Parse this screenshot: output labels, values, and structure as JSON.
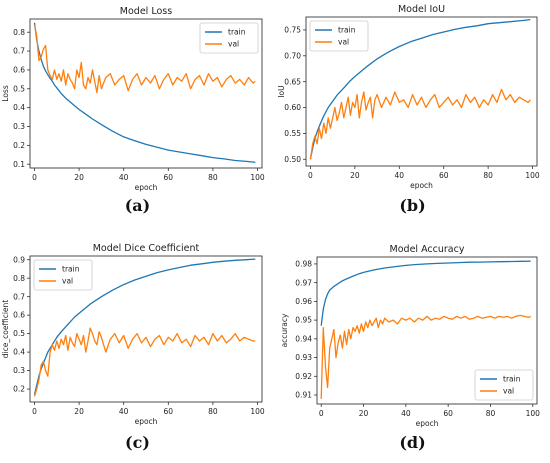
{
  "colors": {
    "train": "#1f77b4",
    "val": "#ff7f0e"
  },
  "chart_data": [
    {
      "type": "line",
      "title": "Model Loss",
      "caption": "(a)",
      "xlabel": "epoch",
      "ylabel": "Loss",
      "xlim": [
        -2,
        102
      ],
      "ylim": [
        0.08,
        0.87
      ],
      "xticks": [
        0,
        20,
        40,
        60,
        80,
        100
      ],
      "yticks": [
        0.1,
        0.2,
        0.3,
        0.4,
        0.5,
        0.6,
        0.7,
        0.8
      ],
      "legend": "top-right",
      "series": [
        {
          "name": "train",
          "x": [
            0,
            1,
            2,
            3,
            4,
            5,
            6,
            7,
            8,
            9,
            10,
            12,
            14,
            16,
            18,
            20,
            23,
            26,
            30,
            35,
            40,
            45,
            50,
            55,
            60,
            65,
            70,
            75,
            80,
            85,
            90,
            95,
            99
          ],
          "y": [
            0.85,
            0.76,
            0.7,
            0.655,
            0.62,
            0.595,
            0.575,
            0.555,
            0.54,
            0.52,
            0.505,
            0.475,
            0.45,
            0.43,
            0.41,
            0.39,
            0.365,
            0.34,
            0.31,
            0.275,
            0.245,
            0.225,
            0.205,
            0.19,
            0.175,
            0.165,
            0.155,
            0.145,
            0.135,
            0.128,
            0.12,
            0.115,
            0.11
          ]
        },
        {
          "name": "val",
          "x": [
            0,
            1,
            2,
            3,
            4,
            5,
            6,
            7,
            8,
            9,
            10,
            11,
            12,
            13,
            14,
            15,
            16,
            17,
            18,
            19,
            20,
            21,
            22,
            23,
            24,
            25,
            26,
            27,
            28,
            29,
            30,
            32,
            34,
            36,
            38,
            40,
            42,
            44,
            46,
            48,
            50,
            52,
            54,
            56,
            58,
            60,
            62,
            64,
            66,
            68,
            70,
            72,
            74,
            76,
            78,
            80,
            82,
            84,
            86,
            88,
            90,
            92,
            94,
            96,
            98,
            99
          ],
          "y": [
            0.84,
            0.78,
            0.65,
            0.67,
            0.71,
            0.73,
            0.6,
            0.57,
            0.55,
            0.6,
            0.55,
            0.58,
            0.54,
            0.6,
            0.52,
            0.58,
            0.55,
            0.53,
            0.5,
            0.6,
            0.56,
            0.64,
            0.52,
            0.5,
            0.56,
            0.53,
            0.6,
            0.54,
            0.48,
            0.57,
            0.5,
            0.56,
            0.58,
            0.52,
            0.55,
            0.57,
            0.49,
            0.55,
            0.58,
            0.52,
            0.56,
            0.53,
            0.57,
            0.5,
            0.55,
            0.58,
            0.52,
            0.56,
            0.54,
            0.58,
            0.5,
            0.55,
            0.57,
            0.52,
            0.58,
            0.54,
            0.56,
            0.51,
            0.55,
            0.57,
            0.53,
            0.55,
            0.52,
            0.56,
            0.53,
            0.54
          ]
        }
      ]
    },
    {
      "type": "line",
      "title": "Model IoU",
      "caption": "(b)",
      "xlabel": "epoch",
      "ylabel": "IoU",
      "xlim": [
        -2,
        102
      ],
      "ylim": [
        0.487,
        0.775
      ],
      "xticks": [
        0,
        20,
        40,
        60,
        80,
        100
      ],
      "yticks": [
        0.5,
        0.55,
        0.6,
        0.65,
        0.7,
        0.75
      ],
      "legend": "top-left",
      "series": [
        {
          "name": "train",
          "x": [
            0,
            1,
            2,
            3,
            4,
            5,
            6,
            8,
            10,
            12,
            15,
            18,
            20,
            25,
            30,
            35,
            40,
            45,
            50,
            55,
            60,
            65,
            70,
            75,
            80,
            85,
            90,
            95,
            99
          ],
          "y": [
            0.5,
            0.522,
            0.54,
            0.553,
            0.564,
            0.574,
            0.584,
            0.6,
            0.612,
            0.624,
            0.638,
            0.652,
            0.66,
            0.678,
            0.694,
            0.707,
            0.718,
            0.727,
            0.734,
            0.741,
            0.746,
            0.751,
            0.755,
            0.758,
            0.762,
            0.764,
            0.766,
            0.768,
            0.77
          ]
        },
        {
          "name": "val",
          "x": [
            0,
            1,
            2,
            3,
            4,
            5,
            6,
            7,
            8,
            9,
            10,
            11,
            12,
            13,
            14,
            15,
            16,
            17,
            18,
            19,
            20,
            21,
            22,
            23,
            24,
            25,
            26,
            27,
            28,
            29,
            30,
            32,
            34,
            36,
            38,
            40,
            42,
            44,
            46,
            48,
            50,
            52,
            54,
            56,
            58,
            60,
            62,
            64,
            66,
            68,
            70,
            72,
            74,
            76,
            78,
            80,
            82,
            84,
            86,
            88,
            90,
            92,
            94,
            96,
            98,
            99
          ],
          "y": [
            0.5,
            0.53,
            0.545,
            0.53,
            0.56,
            0.54,
            0.57,
            0.55,
            0.58,
            0.56,
            0.58,
            0.6,
            0.575,
            0.59,
            0.61,
            0.58,
            0.6,
            0.62,
            0.585,
            0.61,
            0.6,
            0.625,
            0.58,
            0.61,
            0.63,
            0.595,
            0.61,
            0.62,
            0.58,
            0.615,
            0.625,
            0.6,
            0.62,
            0.605,
            0.63,
            0.61,
            0.615,
            0.6,
            0.625,
            0.605,
            0.62,
            0.6,
            0.615,
            0.625,
            0.6,
            0.61,
            0.62,
            0.605,
            0.615,
            0.6,
            0.625,
            0.61,
            0.62,
            0.6,
            0.615,
            0.605,
            0.625,
            0.61,
            0.635,
            0.615,
            0.625,
            0.61,
            0.62,
            0.615,
            0.61,
            0.615
          ]
        }
      ]
    },
    {
      "type": "line",
      "title": "Model Dice Coefficient",
      "caption": "(c)",
      "xlabel": "epoch",
      "ylabel": "dice_coefficient",
      "xlim": [
        -2,
        102
      ],
      "ylim": [
        0.13,
        0.92
      ],
      "xticks": [
        0,
        20,
        40,
        60,
        80,
        100
      ],
      "yticks": [
        0.2,
        0.3,
        0.4,
        0.5,
        0.6,
        0.7,
        0.8,
        0.9
      ],
      "legend": "top-left",
      "series": [
        {
          "name": "train",
          "x": [
            0,
            1,
            2,
            3,
            4,
            5,
            6,
            8,
            10,
            12,
            15,
            18,
            20,
            25,
            30,
            35,
            40,
            45,
            50,
            55,
            60,
            65,
            70,
            75,
            80,
            85,
            90,
            95,
            99
          ],
          "y": [
            0.17,
            0.22,
            0.27,
            0.31,
            0.34,
            0.37,
            0.4,
            0.44,
            0.48,
            0.51,
            0.55,
            0.59,
            0.61,
            0.66,
            0.7,
            0.735,
            0.765,
            0.79,
            0.81,
            0.83,
            0.845,
            0.858,
            0.87,
            0.878,
            0.886,
            0.892,
            0.897,
            0.9,
            0.903
          ]
        },
        {
          "name": "val",
          "x": [
            0,
            1,
            2,
            3,
            4,
            5,
            6,
            7,
            8,
            9,
            10,
            11,
            12,
            13,
            14,
            15,
            16,
            17,
            18,
            19,
            20,
            21,
            22,
            23,
            24,
            25,
            26,
            27,
            28,
            29,
            30,
            32,
            34,
            36,
            38,
            40,
            42,
            44,
            46,
            48,
            50,
            52,
            54,
            56,
            58,
            60,
            62,
            64,
            66,
            68,
            70,
            72,
            74,
            76,
            78,
            80,
            82,
            84,
            86,
            88,
            90,
            92,
            94,
            96,
            98,
            99
          ],
          "y": [
            0.16,
            0.2,
            0.25,
            0.33,
            0.35,
            0.3,
            0.27,
            0.4,
            0.44,
            0.41,
            0.46,
            0.42,
            0.47,
            0.44,
            0.49,
            0.41,
            0.48,
            0.45,
            0.43,
            0.5,
            0.47,
            0.44,
            0.49,
            0.4,
            0.46,
            0.53,
            0.5,
            0.46,
            0.44,
            0.51,
            0.48,
            0.4,
            0.47,
            0.5,
            0.45,
            0.49,
            0.42,
            0.47,
            0.5,
            0.45,
            0.48,
            0.43,
            0.47,
            0.49,
            0.44,
            0.48,
            0.46,
            0.5,
            0.45,
            0.47,
            0.43,
            0.49,
            0.46,
            0.48,
            0.44,
            0.5,
            0.46,
            0.49,
            0.45,
            0.47,
            0.5,
            0.46,
            0.48,
            0.47,
            0.46,
            0.46
          ]
        }
      ]
    },
    {
      "type": "line",
      "title": "Model Accuracy",
      "caption": "(d)",
      "xlabel": "epoch",
      "ylabel": "accuracy",
      "xlim": [
        -2,
        102
      ],
      "ylim": [
        0.9052,
        0.9837
      ],
      "xticks": [
        0,
        20,
        40,
        60,
        80,
        100
      ],
      "yticks": [
        0.91,
        0.92,
        0.93,
        0.94,
        0.95,
        0.96,
        0.97,
        0.98
      ],
      "legend": "bottom-right",
      "series": [
        {
          "name": "train",
          "x": [
            0,
            1,
            2,
            3,
            4,
            5,
            6,
            8,
            10,
            12,
            15,
            18,
            20,
            25,
            30,
            35,
            40,
            45,
            50,
            55,
            60,
            65,
            70,
            75,
            80,
            85,
            90,
            95,
            99
          ],
          "y": [
            0.947,
            0.956,
            0.961,
            0.964,
            0.966,
            0.967,
            0.968,
            0.9695,
            0.971,
            0.972,
            0.9735,
            0.9748,
            0.9755,
            0.9768,
            0.9778,
            0.9786,
            0.9792,
            0.9797,
            0.98,
            0.9803,
            0.9805,
            0.9807,
            0.9809,
            0.981,
            0.9811,
            0.9812,
            0.9813,
            0.9814,
            0.9815
          ]
        },
        {
          "name": "val",
          "x": [
            0,
            1,
            2,
            3,
            4,
            5,
            6,
            7,
            8,
            9,
            10,
            11,
            12,
            13,
            14,
            15,
            16,
            17,
            18,
            19,
            20,
            21,
            22,
            23,
            24,
            25,
            26,
            27,
            28,
            29,
            30,
            32,
            34,
            36,
            38,
            40,
            42,
            44,
            46,
            48,
            50,
            52,
            54,
            56,
            58,
            60,
            62,
            64,
            66,
            68,
            70,
            72,
            74,
            76,
            78,
            80,
            82,
            84,
            86,
            88,
            90,
            92,
            94,
            96,
            98,
            99
          ],
          "y": [
            0.908,
            0.946,
            0.925,
            0.914,
            0.935,
            0.94,
            0.945,
            0.93,
            0.938,
            0.942,
            0.935,
            0.944,
            0.937,
            0.945,
            0.94,
            0.946,
            0.944,
            0.947,
            0.943,
            0.948,
            0.944,
            0.949,
            0.946,
            0.95,
            0.947,
            0.949,
            0.951,
            0.946,
            0.95,
            0.948,
            0.951,
            0.949,
            0.95,
            0.948,
            0.951,
            0.95,
            0.951,
            0.949,
            0.951,
            0.95,
            0.952,
            0.95,
            0.951,
            0.9505,
            0.952,
            0.951,
            0.9505,
            0.952,
            0.951,
            0.952,
            0.9505,
            0.951,
            0.952,
            0.951,
            0.9515,
            0.952,
            0.951,
            0.952,
            0.9515,
            0.952,
            0.951,
            0.952,
            0.9525,
            0.952,
            0.9515,
            0.952
          ]
        }
      ]
    }
  ]
}
